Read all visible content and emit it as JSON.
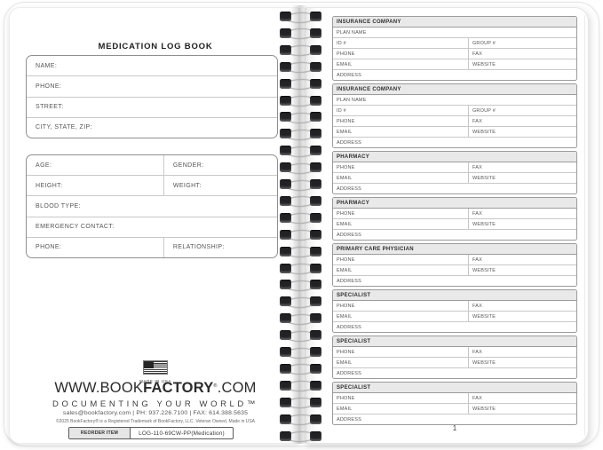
{
  "left_page": {
    "title": "MEDICATION LOG BOOK",
    "contact_box": [
      "NAME:",
      "PHONE:",
      "STREET:",
      "CITY, STATE, ZIP:"
    ],
    "profile_box": {
      "rows": [
        [
          "AGE:",
          "GENDER:"
        ],
        [
          "HEIGHT:",
          "WEIGHT:"
        ],
        [
          "BLOOD TYPE:"
        ],
        [
          "EMERGENCY CONTACT:"
        ],
        [
          "PHONE:",
          "RELATIONSHIP:"
        ]
      ]
    },
    "footer": {
      "made_in_usa": "MADE IN USA",
      "website_prefix": "WWW.BOOK",
      "website_bold": "FACTORY",
      "website_reg": "®",
      "website_suffix": ".COM",
      "tagline": "DOCUMENTING YOUR WORLD™",
      "contact_line": "sales@bookfactory.com   |   PH: 937.226.7100   |   FAX: 614.388.5635",
      "copyright_line": "©2025 BookFactory® is a Registered Trademark of BookFactory, LLC. Veteran Owned, Made in USA",
      "reorder_label": "REORDER ITEM",
      "reorder_value": "LOG-110-69CW-PP(Medication)"
    }
  },
  "right_page": {
    "page_number": "1",
    "sections": [
      {
        "title": "INSURANCE COMPANY",
        "rows": [
          [
            "PLAN NAME"
          ],
          [
            "ID #",
            "GROUP #"
          ],
          [
            "PHONE",
            "FAX"
          ],
          [
            "EMAIL",
            "WEBSITE"
          ],
          [
            "ADDRESS"
          ]
        ]
      },
      {
        "title": "INSURANCE COMPANY",
        "rows": [
          [
            "PLAN NAME"
          ],
          [
            "ID #",
            "GROUP #"
          ],
          [
            "PHONE",
            "FAX"
          ],
          [
            "EMAIL",
            "WEBSITE"
          ],
          [
            "ADDRESS"
          ]
        ]
      },
      {
        "title": "PHARMACY",
        "rows": [
          [
            "PHONE",
            "FAX"
          ],
          [
            "EMAIL",
            "WEBSITE"
          ],
          [
            "ADDRESS"
          ]
        ]
      },
      {
        "title": "PHARMACY",
        "rows": [
          [
            "PHONE",
            "FAX"
          ],
          [
            "EMAIL",
            "WEBSITE"
          ],
          [
            "ADDRESS"
          ]
        ]
      },
      {
        "title": "PRIMARY CARE PHYSICIAN",
        "rows": [
          [
            "PHONE",
            "FAX"
          ],
          [
            "EMAIL",
            "WEBSITE"
          ],
          [
            "ADDRESS"
          ]
        ]
      },
      {
        "title": "SPECIALIST",
        "rows": [
          [
            "PHONE",
            "FAX"
          ],
          [
            "EMAIL",
            "WEBSITE"
          ],
          [
            "ADDRESS"
          ]
        ]
      },
      {
        "title": "SPECIALIST",
        "rows": [
          [
            "PHONE",
            "FAX"
          ],
          [
            "EMAIL",
            "WEBSITE"
          ],
          [
            "ADDRESS"
          ]
        ]
      },
      {
        "title": "SPECIALIST",
        "rows": [
          [
            "PHONE",
            "FAX"
          ],
          [
            "EMAIL",
            "WEBSITE"
          ],
          [
            "ADDRESS"
          ]
        ]
      }
    ]
  },
  "binding": {
    "coil_count": 26
  },
  "colors": {
    "section_header_bg": "#e9e9e9",
    "label": "#555555",
    "box_border": "#8f8f8f",
    "spiral_hole": "#222225",
    "spiral_wire": "#b2b2b2"
  }
}
